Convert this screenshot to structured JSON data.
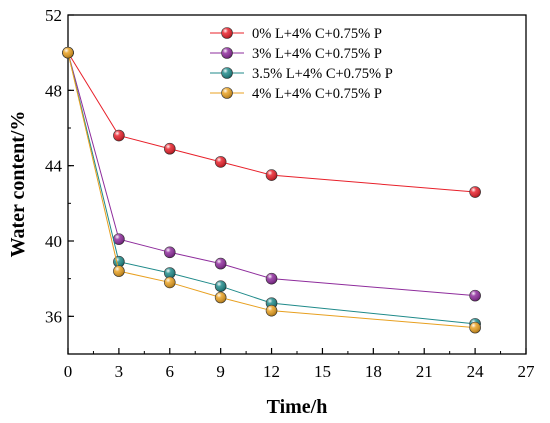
{
  "chart_data": {
    "type": "line",
    "xlabel": "Time/h",
    "ylabel": "Water content/%",
    "xlim": [
      0,
      27
    ],
    "ylim": [
      34,
      52
    ],
    "xticks": [
      "0",
      "3",
      "6",
      "9",
      "12",
      "15",
      "18",
      "21",
      "24",
      "27"
    ],
    "yticks": [
      "36",
      "40",
      "44",
      "48",
      "52"
    ],
    "grid": false,
    "legend_position": "top-right",
    "x": [
      0,
      3,
      6,
      9,
      12,
      24
    ],
    "series": [
      {
        "name": "0% L+4% C+0.75% P",
        "color": "#e8202a",
        "values": [
          50.0,
          45.6,
          44.9,
          44.2,
          43.5,
          42.6
        ]
      },
      {
        "name": "3% L+4% C+0.75% P",
        "color": "#8e2c9c",
        "values": [
          50.0,
          40.1,
          39.4,
          38.8,
          38.0,
          37.1
        ]
      },
      {
        "name": "3.5% L+4% C+0.75% P",
        "color": "#1f8a8a",
        "values": [
          50.0,
          38.9,
          38.3,
          37.6,
          36.7,
          35.6
        ]
      },
      {
        "name": "4% L+4% C+0.75% P",
        "color": "#e8a020",
        "values": [
          50.0,
          38.4,
          37.8,
          37.0,
          36.3,
          35.4
        ]
      }
    ]
  }
}
